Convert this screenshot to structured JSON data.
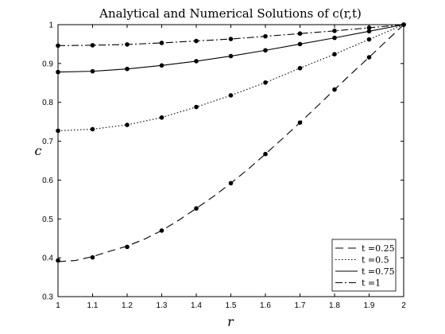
{
  "chart_data": {
    "type": "line",
    "title": "Analytical and Numerical Solutions of c(r,t)",
    "xlabel": "r",
    "ylabel": "c",
    "xlim": [
      1,
      2
    ],
    "ylim": [
      0.3,
      1
    ],
    "xticks": [
      "1",
      "1.1",
      "1.2",
      "1.3",
      "1.4",
      "1.5",
      "1.6",
      "1.7",
      "1.8",
      "1.9",
      "2"
    ],
    "yticks": [
      "0.3",
      "0.4",
      "0.5",
      "0.6",
      "0.7",
      "0.8",
      "0.9",
      "1"
    ],
    "grid": false,
    "legend_position": "bottom-right",
    "series": [
      {
        "name": "t =0.25",
        "dash": "10,6",
        "points_x": [
          1.0,
          1.1,
          1.2,
          1.3,
          1.4,
          1.5,
          1.6,
          1.7,
          1.8,
          1.9,
          2.0
        ],
        "points_y": [
          0.393,
          0.401,
          0.428,
          0.47,
          0.527,
          0.592,
          0.667,
          0.748,
          0.833,
          0.916,
          1.0
        ],
        "curve_x": [
          1.0,
          1.05,
          1.1,
          1.15,
          1.2,
          1.25,
          1.3,
          1.35,
          1.4,
          1.45,
          1.5,
          1.55,
          1.6,
          1.65,
          1.7,
          1.75,
          1.8,
          1.85,
          1.9,
          1.95,
          2.0
        ],
        "curve_y": [
          0.39,
          0.393,
          0.403,
          0.417,
          0.43,
          0.448,
          0.47,
          0.497,
          0.527,
          0.558,
          0.592,
          0.628,
          0.667,
          0.707,
          0.748,
          0.79,
          0.833,
          0.875,
          0.916,
          0.958,
          1.0
        ]
      },
      {
        "name": "t =0.5",
        "dash": "1.5,2.5",
        "points_x": [
          1.0,
          1.1,
          1.2,
          1.3,
          1.4,
          1.5,
          1.6,
          1.7,
          1.8,
          1.9,
          2.0
        ],
        "points_y": [
          0.727,
          0.731,
          0.742,
          0.761,
          0.788,
          0.818,
          0.851,
          0.888,
          0.924,
          0.962,
          1.0
        ],
        "curve_x": [
          1.0,
          1.1,
          1.2,
          1.3,
          1.4,
          1.5,
          1.6,
          1.7,
          1.8,
          1.9,
          2.0
        ],
        "curve_y": [
          0.727,
          0.731,
          0.742,
          0.761,
          0.788,
          0.818,
          0.851,
          0.888,
          0.924,
          0.962,
          1.0
        ]
      },
      {
        "name": "t =0.75",
        "dash": "",
        "points_x": [
          1.0,
          1.1,
          1.2,
          1.3,
          1.4,
          1.5,
          1.6,
          1.7,
          1.8,
          1.9,
          2.0
        ],
        "points_y": [
          0.878,
          0.88,
          0.886,
          0.895,
          0.906,
          0.919,
          0.934,
          0.95,
          0.966,
          0.983,
          1.0
        ],
        "curve_x": [
          1.0,
          1.1,
          1.2,
          1.3,
          1.4,
          1.5,
          1.6,
          1.7,
          1.8,
          1.9,
          2.0
        ],
        "curve_y": [
          0.878,
          0.88,
          0.886,
          0.895,
          0.906,
          0.919,
          0.934,
          0.95,
          0.966,
          0.983,
          1.0
        ]
      },
      {
        "name": "t =1",
        "dash": "9,3,2,3",
        "points_x": [
          1.0,
          1.1,
          1.2,
          1.3,
          1.4,
          1.5,
          1.6,
          1.7,
          1.8,
          1.9,
          2.0
        ],
        "points_y": [
          0.946,
          0.947,
          0.949,
          0.953,
          0.958,
          0.963,
          0.97,
          0.977,
          0.984,
          0.992,
          1.0
        ],
        "curve_x": [
          1.0,
          1.1,
          1.2,
          1.3,
          1.4,
          1.5,
          1.6,
          1.7,
          1.8,
          1.9,
          2.0
        ],
        "curve_y": [
          0.946,
          0.947,
          0.949,
          0.953,
          0.958,
          0.963,
          0.97,
          0.977,
          0.984,
          0.992,
          1.0
        ]
      }
    ]
  }
}
